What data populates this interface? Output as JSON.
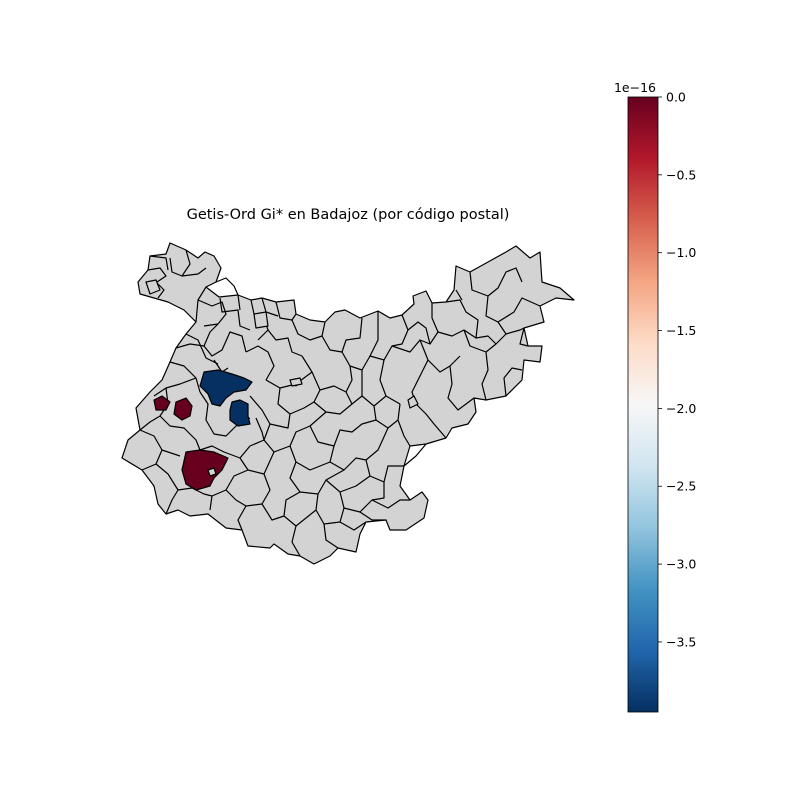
{
  "figure": {
    "title": "Getis-Ord Gi* en Badajoz (por código postal)"
  },
  "colors": {
    "base_region": "#d3d3d3",
    "boundary": "#000000",
    "hotspot": "#67001f",
    "coldspot": "#053061"
  },
  "map": {
    "region": "Badajoz",
    "unit": "código postal",
    "highlighted_regions": [
      {
        "category": "hot",
        "value": 0.0,
        "color": "#67001f"
      },
      {
        "category": "hot",
        "value": 0.0,
        "color": "#67001f"
      },
      {
        "category": "hot",
        "value": 0.0,
        "color": "#67001f"
      },
      {
        "category": "cold",
        "value": -3.95,
        "color": "#053061"
      },
      {
        "category": "cold",
        "value": -3.95,
        "color": "#053061"
      }
    ]
  },
  "colorbar": {
    "colormap": "RdBu_r",
    "offset_label": "1e−16",
    "min": -3.95,
    "max": 0.0,
    "stops": [
      "#053061",
      "#2166ac",
      "#4393c3",
      "#92c5de",
      "#d1e5f0",
      "#f7f7f7",
      "#fddbc7",
      "#f4a582",
      "#d6604d",
      "#b2182b",
      "#67001f"
    ],
    "ticks": [
      {
        "value": 0.0,
        "label": "0.0"
      },
      {
        "value": -0.5,
        "label": "−0.5"
      },
      {
        "value": -1.0,
        "label": "−1.0"
      },
      {
        "value": -1.5,
        "label": "−1.5"
      },
      {
        "value": -2.0,
        "label": "−2.0"
      },
      {
        "value": -2.5,
        "label": "−2.5"
      },
      {
        "value": -3.0,
        "label": "−3.0"
      },
      {
        "value": -3.5,
        "label": "−3.5"
      }
    ]
  }
}
